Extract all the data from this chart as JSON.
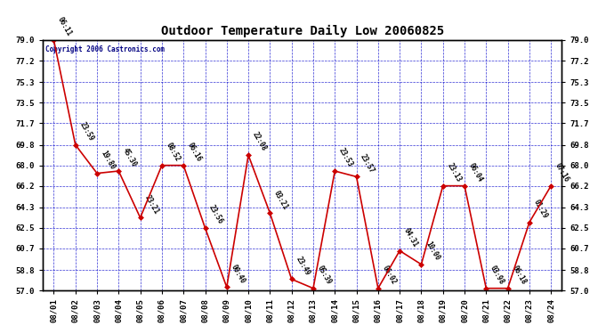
{
  "title": "Outdoor Temperature Daily Low 20060825",
  "copyright": "Copyright 2006 Castronics.com",
  "dates": [
    "08/01",
    "08/02",
    "08/03",
    "08/04",
    "08/05",
    "08/06",
    "08/07",
    "08/08",
    "08/09",
    "08/10",
    "08/11",
    "08/12",
    "08/13",
    "08/14",
    "08/15",
    "08/16",
    "08/17",
    "08/18",
    "08/19",
    "08/20",
    "08/21",
    "08/22",
    "08/23",
    "08/24"
  ],
  "values": [
    79.0,
    69.8,
    67.3,
    67.5,
    63.4,
    68.0,
    68.0,
    62.5,
    57.3,
    68.9,
    63.8,
    58.0,
    57.2,
    67.5,
    67.0,
    57.2,
    60.5,
    59.3,
    66.2,
    66.2,
    57.2,
    57.2,
    63.0,
    66.2
  ],
  "time_labels": [
    "06:11",
    "23:59",
    "19:80",
    "45:30",
    "23:21",
    "08:52",
    "06:16",
    "23:56",
    "00:40",
    "22:08",
    "03:21",
    "23:49",
    "05:39",
    "23:53",
    "23:57",
    "06:02",
    "04:31",
    "10:00",
    "23:13",
    "06:04",
    "03:98",
    "06:18",
    "01:29",
    "07:16"
  ],
  "ylim": [
    57.0,
    79.0
  ],
  "yticks": [
    57.0,
    58.8,
    60.7,
    62.5,
    64.3,
    66.2,
    68.0,
    69.8,
    71.7,
    73.5,
    75.3,
    77.2,
    79.0
  ],
  "line_color": "#cc0000",
  "marker_color": "#cc0000",
  "bg_color": "#ffffff",
  "plot_bg_color": "#ffffff",
  "grid_color": "#0000cc",
  "title_color": "#000000",
  "tick_color": "#000000",
  "copyright_color": "#000080"
}
